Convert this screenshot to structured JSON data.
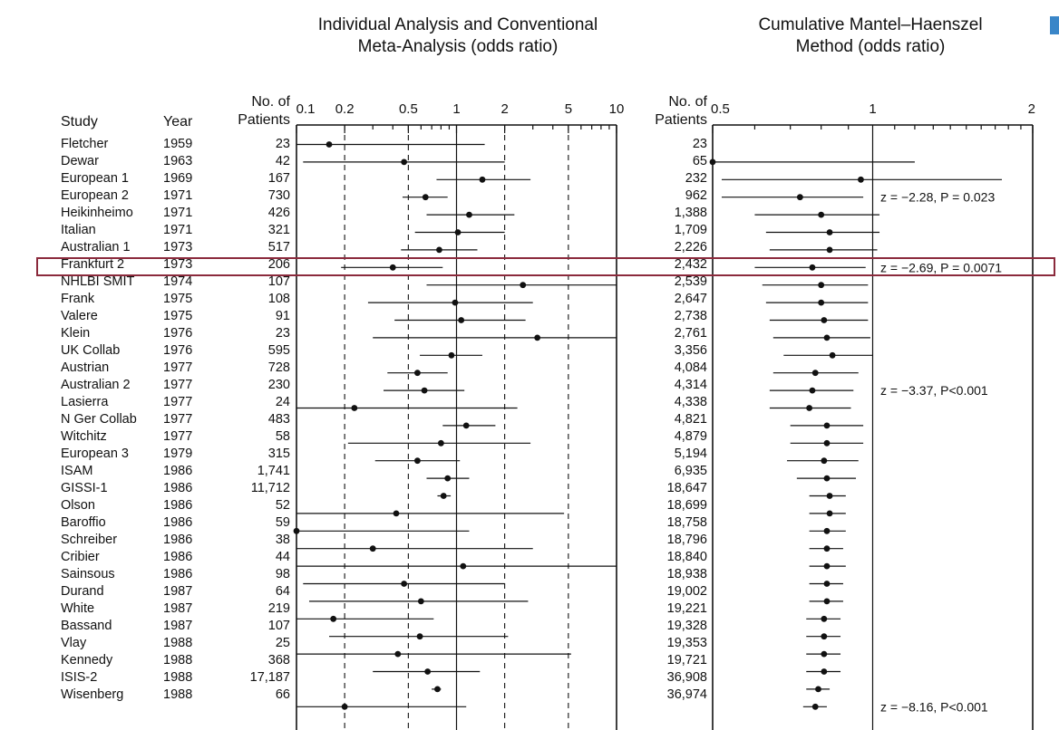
{
  "titles": {
    "left": "Individual Analysis and Conventional Meta-Analysis (odds ratio)",
    "left_line1": "Individual Analysis and Conventional",
    "left_line2": "Meta-Analysis (odds ratio)",
    "right_line1": "Cumulative Mantel–Haenszel",
    "right_line2": "Method (odds ratio)"
  },
  "headers": {
    "study": "Study",
    "year": "Year",
    "patients_line1": "No. of",
    "patients_line2": "Patients"
  },
  "colors": {
    "highlight": "#8b2a3c",
    "corner": "#3a86c8"
  },
  "chart_data": [
    {
      "type": "scatter",
      "subtype": "forest-plot",
      "title": "Individual Analysis and Conventional Meta-Analysis (odds ratio)",
      "x_scale": "log",
      "xlim": [
        0.1,
        10
      ],
      "x_ticks": [
        0.1,
        0.2,
        0.5,
        1,
        2,
        5,
        10
      ],
      "x_tick_labels": [
        "0.1",
        "0.2",
        "0.5",
        "1",
        "2",
        "5",
        "10"
      ],
      "reference_lines": [
        0.2,
        0.5,
        1,
        2,
        5
      ],
      "studies": [
        {
          "study": "Fletcher",
          "year": "1959",
          "patients": "23",
          "or": 0.16,
          "lo": 0.1,
          "hi": 1.5
        },
        {
          "study": "Dewar",
          "year": "1963",
          "patients": "42",
          "or": 0.47,
          "lo": 0.11,
          "hi": 2.0
        },
        {
          "study": "European 1",
          "year": "1969",
          "patients": "167",
          "or": 1.45,
          "lo": 0.75,
          "hi": 2.9
        },
        {
          "study": "European 2",
          "year": "1971",
          "patients": "730",
          "or": 0.64,
          "lo": 0.46,
          "hi": 0.88
        },
        {
          "study": "Heikinheimo",
          "year": "1971",
          "patients": "426",
          "or": 1.2,
          "lo": 0.65,
          "hi": 2.3
        },
        {
          "study": "Italian",
          "year": "1971",
          "patients": "321",
          "or": 1.02,
          "lo": 0.55,
          "hi": 2.0
        },
        {
          "study": "Australian 1",
          "year": "1973",
          "patients": "517",
          "or": 0.78,
          "lo": 0.45,
          "hi": 1.35
        },
        {
          "study": "Frankfurt 2",
          "year": "1973",
          "patients": "206",
          "or": 0.4,
          "lo": 0.19,
          "hi": 0.82
        },
        {
          "study": "NHLBI SMIT",
          "year": "1974",
          "patients": "107",
          "or": 2.6,
          "lo": 0.65,
          "hi": 10
        },
        {
          "study": "Frank",
          "year": "1975",
          "patients": "108",
          "or": 0.98,
          "lo": 0.28,
          "hi": 3.0
        },
        {
          "study": "Valere",
          "year": "1975",
          "patients": "91",
          "or": 1.07,
          "lo": 0.41,
          "hi": 2.7
        },
        {
          "study": "Klein",
          "year": "1976",
          "patients": "23",
          "or": 3.2,
          "lo": 0.3,
          "hi": 10
        },
        {
          "study": "UK Collab",
          "year": "1976",
          "patients": "595",
          "or": 0.93,
          "lo": 0.59,
          "hi": 1.45
        },
        {
          "study": "Austrian",
          "year": "1977",
          "patients": "728",
          "or": 0.57,
          "lo": 0.37,
          "hi": 0.88
        },
        {
          "study": "Australian 2",
          "year": "1977",
          "patients": "230",
          "or": 0.63,
          "lo": 0.35,
          "hi": 1.12
        },
        {
          "study": "Lasierra",
          "year": "1977",
          "patients": "24",
          "or": 0.23,
          "lo": 0.1,
          "hi": 2.4
        },
        {
          "study": "N Ger Collab",
          "year": "1977",
          "patients": "483",
          "or": 1.15,
          "lo": 0.82,
          "hi": 1.75
        },
        {
          "study": "Witchitz",
          "year": "1977",
          "patients": "58",
          "or": 0.8,
          "lo": 0.21,
          "hi": 2.9
        },
        {
          "study": "European 3",
          "year": "1979",
          "patients": "315",
          "or": 0.57,
          "lo": 0.31,
          "hi": 1.05
        },
        {
          "study": "ISAM",
          "year": "1986",
          "patients": "1,741",
          "or": 0.88,
          "lo": 0.65,
          "hi": 1.2
        },
        {
          "study": "GISSI-1",
          "year": "1986",
          "patients": "11,712",
          "or": 0.83,
          "lo": 0.76,
          "hi": 0.92
        },
        {
          "study": "Olson",
          "year": "1986",
          "patients": "52",
          "or": 0.42,
          "lo": 0.1,
          "hi": 4.7
        },
        {
          "study": "Baroffio",
          "year": "1986",
          "patients": "59",
          "or": 0.1,
          "lo": 0.1,
          "hi": 1.2
        },
        {
          "study": "Schreiber",
          "year": "1986",
          "patients": "38",
          "or": 0.3,
          "lo": 0.1,
          "hi": 3.0
        },
        {
          "study": "Cribier",
          "year": "1986",
          "patients": "44",
          "or": 1.1,
          "lo": 0.1,
          "hi": 10
        },
        {
          "study": "Sainsous",
          "year": "1986",
          "patients": "98",
          "or": 0.47,
          "lo": 0.11,
          "hi": 2.0
        },
        {
          "study": "Durand",
          "year": "1987",
          "patients": "64",
          "or": 0.6,
          "lo": 0.12,
          "hi": 2.8
        },
        {
          "study": "White",
          "year": "1987",
          "patients": "219",
          "or": 0.17,
          "lo": 0.1,
          "hi": 0.72
        },
        {
          "study": "Bassand",
          "year": "1987",
          "patients": "107",
          "or": 0.59,
          "lo": 0.16,
          "hi": 2.1
        },
        {
          "study": "Vlay",
          "year": "1988",
          "patients": "25",
          "or": 0.43,
          "lo": 0.1,
          "hi": 5.2
        },
        {
          "study": "Kennedy",
          "year": "1988",
          "patients": "368",
          "or": 0.66,
          "lo": 0.3,
          "hi": 1.4
        },
        {
          "study": "ISIS-2",
          "year": "1988",
          "patients": "17,187",
          "or": 0.76,
          "lo": 0.7,
          "hi": 0.8
        },
        {
          "study": "Wisenberg",
          "year": "1988",
          "patients": "66",
          "or": 0.2,
          "lo": 0.1,
          "hi": 1.15
        }
      ]
    },
    {
      "type": "scatter",
      "subtype": "forest-plot",
      "title": "Cumulative Mantel–Haenszel Method (odds ratio)",
      "x_scale": "log",
      "xlim": [
        0.5,
        2
      ],
      "x_ticks": [
        0.5,
        1,
        2
      ],
      "x_tick_labels": [
        "0.5",
        "1",
        "2"
      ],
      "reference_lines": [
        1
      ],
      "cumulative": [
        {
          "patients": "23",
          "or": null,
          "lo": null,
          "hi": null
        },
        {
          "patients": "65",
          "or": 0.5,
          "lo": 0.5,
          "hi": 1.2
        },
        {
          "patients": "232",
          "or": 0.95,
          "lo": 0.52,
          "hi": 1.75
        },
        {
          "patients": "962",
          "or": 0.73,
          "lo": 0.52,
          "hi": 0.96
        },
        {
          "patients": "1,388",
          "or": 0.8,
          "lo": 0.6,
          "hi": 1.03
        },
        {
          "patients": "1,709",
          "or": 0.83,
          "lo": 0.63,
          "hi": 1.03
        },
        {
          "patients": "2,226",
          "or": 0.83,
          "lo": 0.64,
          "hi": 1.02
        },
        {
          "patients": "2,432",
          "or": 0.77,
          "lo": 0.6,
          "hi": 0.97
        },
        {
          "patients": "2,539",
          "or": 0.8,
          "lo": 0.62,
          "hi": 0.98
        },
        {
          "patients": "2,647",
          "or": 0.8,
          "lo": 0.63,
          "hi": 0.98
        },
        {
          "patients": "2,738",
          "or": 0.81,
          "lo": 0.64,
          "hi": 0.98
        },
        {
          "patients": "2,761",
          "or": 0.82,
          "lo": 0.65,
          "hi": 0.99
        },
        {
          "patients": "3,356",
          "or": 0.84,
          "lo": 0.68,
          "hi": 1.0
        },
        {
          "patients": "4,084",
          "or": 0.78,
          "lo": 0.65,
          "hi": 0.94
        },
        {
          "patients": "4,314",
          "or": 0.77,
          "lo": 0.64,
          "hi": 0.92
        },
        {
          "patients": "4,338",
          "or": 0.76,
          "lo": 0.64,
          "hi": 0.91
        },
        {
          "patients": "4,821",
          "or": 0.82,
          "lo": 0.7,
          "hi": 0.96
        },
        {
          "patients": "4,879",
          "or": 0.82,
          "lo": 0.7,
          "hi": 0.96
        },
        {
          "patients": "5,194",
          "or": 0.81,
          "lo": 0.69,
          "hi": 0.94
        },
        {
          "patients": "6,935",
          "or": 0.82,
          "lo": 0.72,
          "hi": 0.93
        },
        {
          "patients": "18,647",
          "or": 0.83,
          "lo": 0.76,
          "hi": 0.89
        },
        {
          "patients": "18,699",
          "or": 0.83,
          "lo": 0.76,
          "hi": 0.89
        },
        {
          "patients": "18,758",
          "or": 0.82,
          "lo": 0.76,
          "hi": 0.89
        },
        {
          "patients": "18,796",
          "or": 0.82,
          "lo": 0.76,
          "hi": 0.88
        },
        {
          "patients": "18,840",
          "or": 0.82,
          "lo": 0.76,
          "hi": 0.89
        },
        {
          "patients": "18,938",
          "or": 0.82,
          "lo": 0.76,
          "hi": 0.88
        },
        {
          "patients": "19,002",
          "or": 0.82,
          "lo": 0.76,
          "hi": 0.88
        },
        {
          "patients": "19,221",
          "or": 0.81,
          "lo": 0.75,
          "hi": 0.87
        },
        {
          "patients": "19,328",
          "or": 0.81,
          "lo": 0.75,
          "hi": 0.87
        },
        {
          "patients": "19,353",
          "or": 0.81,
          "lo": 0.75,
          "hi": 0.87
        },
        {
          "patients": "19,721",
          "or": 0.81,
          "lo": 0.75,
          "hi": 0.87
        },
        {
          "patients": "36,908",
          "or": 0.79,
          "lo": 0.75,
          "hi": 0.83
        },
        {
          "patients": "36,974",
          "or": 0.78,
          "lo": 0.74,
          "hi": 0.82
        }
      ],
      "annotations": [
        {
          "row": 3,
          "text": "z = −2.28, P = 0.023"
        },
        {
          "row": 7,
          "text": "z = −2.69, P = 0.0071"
        },
        {
          "row": 14,
          "text": "z = −3.37, P<0.001"
        },
        {
          "row": 32,
          "text": "z = −8.16, P<0.001"
        }
      ]
    }
  ]
}
